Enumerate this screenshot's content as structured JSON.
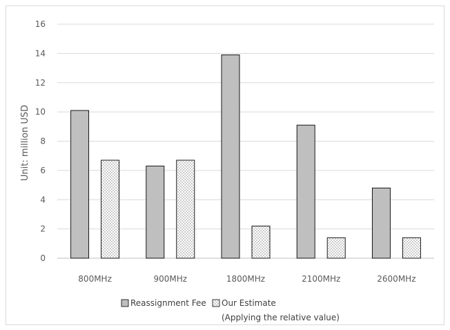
{
  "chart_data": {
    "type": "bar",
    "categories": [
      "800MHz",
      "900MHz",
      "1800MHz",
      "2100MHz",
      "2600MHz"
    ],
    "series": [
      {
        "name": "Reassignment Fee",
        "values": [
          10.1,
          6.3,
          13.9,
          9.1,
          4.8
        ],
        "fill": "#bfbfbf",
        "pattern": "solid"
      },
      {
        "name": "Our Estimate",
        "name_line2": "(Applying the relative value)",
        "values": [
          6.7,
          6.7,
          2.2,
          1.4,
          1.4
        ],
        "fill": "#ffffff",
        "pattern": "dots"
      }
    ],
    "ylabel": "Unit: million USD",
    "ylim": [
      0,
      16
    ],
    "yticks": [
      0,
      2,
      4,
      6,
      8,
      10,
      12,
      14,
      16
    ],
    "grid": true,
    "legend": "bottom"
  }
}
